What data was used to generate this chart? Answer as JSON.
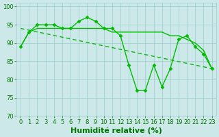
{
  "series": [
    {
      "x": [
        0,
        1,
        2,
        3,
        4,
        5,
        6,
        7,
        8,
        9,
        10,
        11,
        12,
        13,
        14,
        15,
        16,
        17,
        18,
        19,
        20,
        21,
        22,
        23
      ],
      "y": [
        89,
        93,
        95,
        95,
        95,
        94,
        94,
        96,
        97,
        96,
        94,
        94,
        92,
        84,
        77,
        77,
        84,
        78,
        83,
        91,
        92,
        89,
        87,
        83
      ],
      "color": "#00bb00",
      "linewidth": 1.0,
      "marker": "D",
      "markersize": 2.5,
      "linestyle": "-"
    },
    {
      "x": [
        0,
        23
      ],
      "y": [
        94.0,
        83.0
      ],
      "color": "#00bb00",
      "linewidth": 1.0,
      "marker": null,
      "linestyle": "--"
    },
    {
      "x": [
        0,
        1,
        2,
        3,
        4,
        5,
        6,
        7,
        8,
        9,
        10,
        11,
        12,
        13,
        14,
        15,
        16,
        17,
        18,
        19,
        20,
        21,
        22,
        23
      ],
      "y": [
        89,
        93,
        94,
        94,
        94,
        94,
        94,
        94,
        94,
        94,
        94,
        93,
        93,
        93,
        93,
        93,
        93,
        93,
        92,
        92,
        91,
        90,
        88,
        83
      ],
      "color": "#00bb00",
      "linewidth": 1.0,
      "marker": null,
      "linestyle": "-"
    }
  ],
  "xlabel": "Humidité relative (%)",
  "xlim": [
    -0.5,
    23.5
  ],
  "ylim": [
    70,
    101
  ],
  "yticks": [
    70,
    75,
    80,
    85,
    90,
    95,
    100
  ],
  "xticks": [
    0,
    1,
    2,
    3,
    4,
    5,
    6,
    7,
    8,
    9,
    10,
    11,
    12,
    13,
    14,
    15,
    16,
    17,
    18,
    19,
    20,
    21,
    22,
    23
  ],
  "xtick_labels": [
    "0",
    "1",
    "2",
    "3",
    "4",
    "5",
    "6",
    "7",
    "8",
    "9",
    "10",
    "11",
    "12",
    "13",
    "14",
    "15",
    "16",
    "17",
    "18",
    "19",
    "20",
    "21",
    "22",
    "23"
  ],
  "background_color": "#cce8e8",
  "grid_color": "#99cccc",
  "text_color": "#007700",
  "tick_fontsize": 6.0,
  "xlabel_fontsize": 8.0
}
